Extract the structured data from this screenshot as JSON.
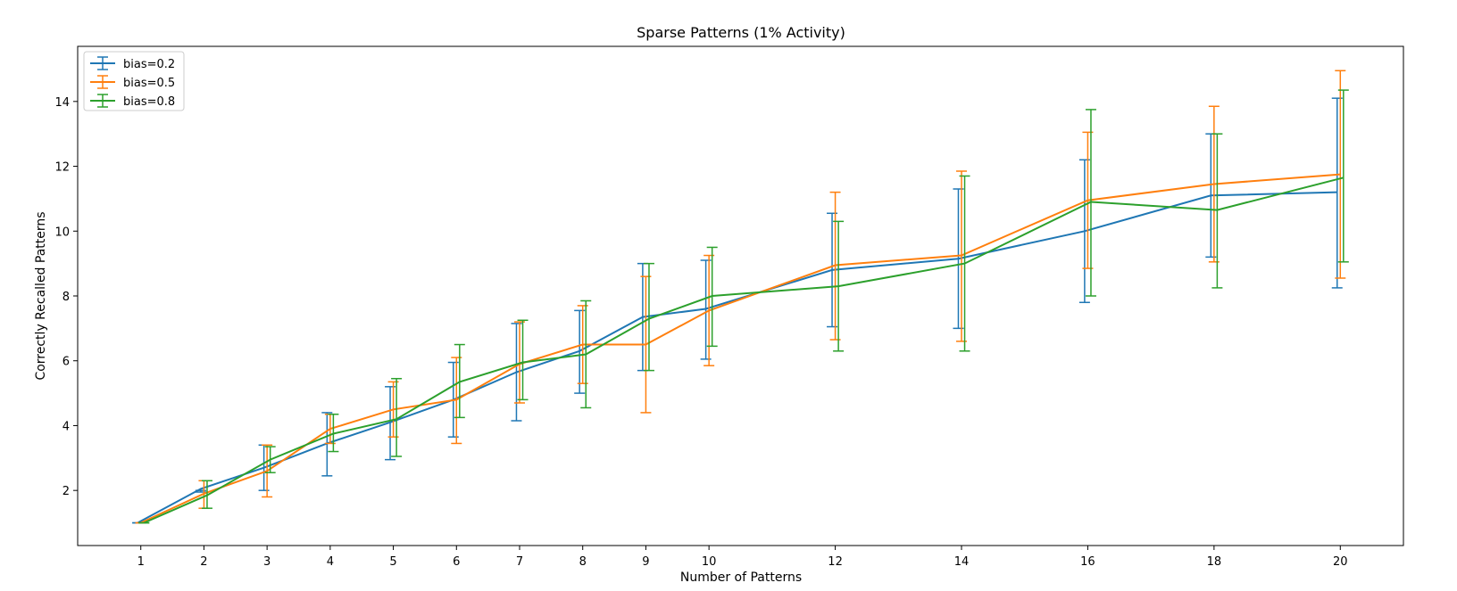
{
  "chart_data": {
    "type": "line",
    "title": "Sparse Patterns (1% Activity)",
    "xlabel": "Number of Patterns",
    "ylabel": "Correctly Recalled Patterns",
    "x": [
      1,
      2,
      3,
      4,
      5,
      6,
      7,
      8,
      9,
      10,
      12,
      14,
      16,
      18,
      20
    ],
    "xticks": [
      "1",
      "2",
      "3",
      "4",
      "5",
      "6",
      "7",
      "8",
      "9",
      "10",
      "12",
      "14",
      "16",
      "18",
      "20"
    ],
    "xlim": [
      0,
      21
    ],
    "ylim": [
      0.3,
      15.7
    ],
    "yticks": [
      2,
      4,
      6,
      8,
      10,
      12,
      14
    ],
    "grid": false,
    "legend_position": "top-left",
    "error_bars": true,
    "series": [
      {
        "name": "bias=0.2",
        "color": "#1f77b4",
        "values": [
          1.0,
          2.05,
          2.7,
          3.45,
          4.1,
          4.8,
          5.65,
          6.3,
          7.35,
          7.6,
          8.8,
          9.15,
          10.0,
          11.1,
          11.2
        ],
        "err_low": [
          1.0,
          1.95,
          2.0,
          2.45,
          2.95,
          3.65,
          4.15,
          5.0,
          5.7,
          6.05,
          7.05,
          7.0,
          7.8,
          9.2,
          8.25
        ],
        "err_high": [
          1.0,
          2.0,
          3.4,
          4.4,
          5.2,
          5.95,
          7.15,
          7.55,
          9.0,
          9.1,
          10.55,
          11.3,
          12.2,
          13.0,
          14.1
        ],
        "offset": -0.05
      },
      {
        "name": "bias=0.5",
        "color": "#ff7f0e",
        "values": [
          1.0,
          1.9,
          2.6,
          3.9,
          4.5,
          4.8,
          5.9,
          6.5,
          6.5,
          7.55,
          8.95,
          9.25,
          10.95,
          11.45,
          11.75
        ],
        "err_low": [
          1.0,
          1.45,
          1.8,
          3.45,
          3.65,
          3.45,
          4.7,
          5.3,
          4.4,
          5.85,
          6.65,
          6.6,
          8.85,
          9.05,
          8.55
        ],
        "err_high": [
          1.0,
          2.3,
          3.4,
          4.35,
          5.35,
          6.1,
          7.2,
          7.7,
          8.6,
          9.25,
          11.2,
          11.85,
          13.05,
          13.85,
          14.95
        ],
        "offset": 0.0
      },
      {
        "name": "bias=0.8",
        "color": "#2ca02c",
        "values": [
          1.0,
          1.85,
          2.95,
          3.75,
          4.2,
          5.35,
          5.95,
          6.2,
          7.3,
          8.0,
          8.3,
          9.0,
          10.9,
          10.65,
          11.65
        ],
        "err_low": [
          1.0,
          1.45,
          2.55,
          3.2,
          3.05,
          4.25,
          4.8,
          4.55,
          5.7,
          6.45,
          6.3,
          6.3,
          8.0,
          8.25,
          9.05
        ],
        "err_high": [
          1.0,
          2.3,
          3.35,
          4.35,
          5.45,
          6.5,
          7.25,
          7.85,
          9.0,
          9.5,
          10.3,
          11.7,
          13.75,
          13.0,
          14.35
        ],
        "offset": 0.05
      }
    ]
  }
}
